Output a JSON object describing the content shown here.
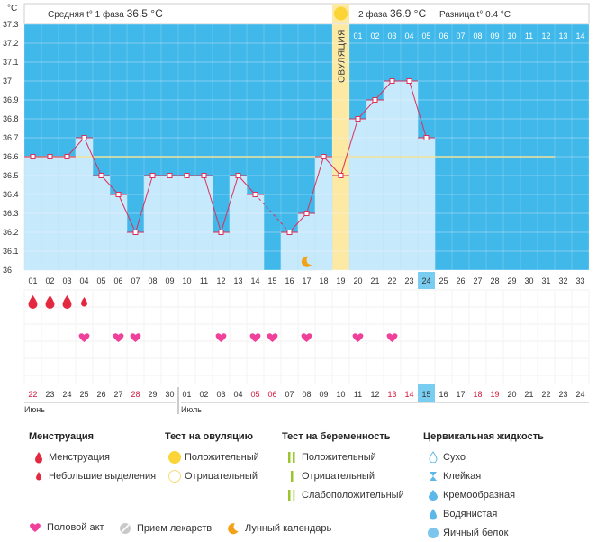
{
  "header": {
    "unit": "°C",
    "phase1_label": "Средняя t° 1 фаза",
    "phase1_value": "36.5 °C",
    "phase2_label": "2 фаза",
    "phase2_value": "36.9 °C",
    "diff_label": "Разница t°",
    "diff_value": "0.4 °C",
    "ovulation_label": "ОВУЛЯЦИЯ"
  },
  "chart_data": {
    "type": "line",
    "ylim": [
      36,
      37.3
    ],
    "y_ticks": [
      "36",
      "36.1",
      "36.2",
      "36.3",
      "36.4",
      "36.5",
      "36.6",
      "36.7",
      "36.8",
      "36.9",
      "37",
      "37.1",
      "37.2",
      "37.3"
    ],
    "cycle_days": [
      "01",
      "02",
      "03",
      "04",
      "05",
      "06",
      "07",
      "08",
      "09",
      "10",
      "11",
      "12",
      "13",
      "14",
      "15",
      "16",
      "17",
      "18",
      "19",
      "20",
      "21",
      "22",
      "23",
      "24",
      "25",
      "26",
      "27",
      "28",
      "29",
      "30",
      "31",
      "32",
      "33"
    ],
    "after_ovulation_days": [
      "01",
      "02",
      "03",
      "04",
      "05",
      "06",
      "07",
      "08",
      "09",
      "10",
      "11",
      "12",
      "13",
      "14"
    ],
    "temperature": [
      36.6,
      36.6,
      36.6,
      36.7,
      36.5,
      36.4,
      36.2,
      36.5,
      36.5,
      36.5,
      36.5,
      36.2,
      36.5,
      36.4,
      null,
      36.2,
      36.3,
      36.6,
      36.5,
      36.8,
      36.9,
      37.0,
      37.0,
      36.7
    ],
    "coverline": 36.6,
    "ovulation_day": 19,
    "current_day": 24,
    "menstruation": [
      {
        "day": 1,
        "type": "heavy"
      },
      {
        "day": 2,
        "type": "heavy"
      },
      {
        "day": 3,
        "type": "heavy"
      },
      {
        "day": 4,
        "type": "light"
      }
    ],
    "intercourse_days": [
      4,
      6,
      7,
      12,
      14,
      15,
      17,
      20,
      22
    ],
    "lunar_day": 17,
    "dates": [
      "22",
      "23",
      "24",
      "25",
      "26",
      "27",
      "28",
      "29",
      "30",
      "01",
      "02",
      "03",
      "04",
      "05",
      "06",
      "07",
      "08",
      "09",
      "10",
      "11",
      "12",
      "13",
      "14",
      "15",
      "16",
      "17",
      "18",
      "19",
      "20",
      "21",
      "22",
      "23",
      "24"
    ],
    "red_dates_idx": [
      0,
      6,
      13,
      14,
      21,
      22,
      26,
      27
    ],
    "current_date_idx": 23,
    "month_labels": [
      "Июнь",
      "Июль"
    ],
    "colors": {
      "bar": "#c6e9fb",
      "bar_edge": "#a8d9f2",
      "background": "#41b8ea",
      "line": "#dd2f5b",
      "ovulation": "#fbe9a4",
      "ovulation_sun": "#fbd437",
      "grid": "#d8d8d8",
      "coverline": "#f4e39a",
      "heart": "#f0419a",
      "drop": "#e4283f",
      "moon": "#f3a216"
    }
  },
  "legend": {
    "menstruation": {
      "title": "Менструация",
      "items": [
        "Менструация",
        "Небольшие выделения"
      ]
    },
    "ovulation_test": {
      "title": "Тест на овуляцию",
      "items": [
        "Положительный",
        "Отрицательный"
      ]
    },
    "pregnancy_test": {
      "title": "Тест на беременность",
      "items": [
        "Положительный",
        "Отрицательный",
        "Слабоположительный"
      ]
    },
    "cervical": {
      "title": "Цервикальная жидкость",
      "items": [
        "Сухо",
        "Клейкая",
        "Кремообразная",
        "Водянистая",
        "Яичный белок"
      ]
    },
    "bottom": [
      "Половой акт",
      "Прием лекарств",
      "Лунный календарь"
    ]
  }
}
